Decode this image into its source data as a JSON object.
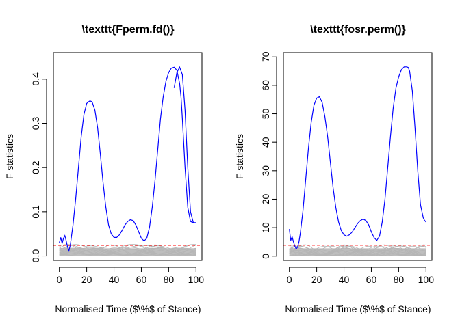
{
  "chart_data": [
    {
      "type": "line",
      "title": "\\texttt{Fperm.fd()}",
      "xlabel": "Normalised Time ($\\%$ of Stance)",
      "ylabel": "F statistics",
      "xlim": [
        0,
        100
      ],
      "ylim": [
        -0.01,
        0.46
      ],
      "xticks": [
        0,
        20,
        40,
        60,
        80,
        100
      ],
      "yticks": [
        0.0,
        0.1,
        0.2,
        0.3,
        0.4
      ],
      "ytick_labels": [
        "0.0",
        "0.1",
        "0.2",
        "0.3",
        "0.4"
      ],
      "threshold": 0.024,
      "series": [
        {
          "kind": "observed",
          "color": "#0000FF",
          "x": [
            0,
            1,
            2,
            3,
            4,
            5,
            6,
            7,
            8,
            10,
            12,
            14,
            16,
            18,
            20,
            22,
            23,
            24,
            26,
            28,
            30,
            32,
            34,
            36,
            38,
            40,
            42,
            44,
            46,
            48,
            50,
            52,
            54,
            56,
            58,
            60,
            62,
            64,
            66,
            68,
            70,
            72,
            74,
            76,
            78,
            80,
            82,
            84,
            86,
            88,
            89,
            90,
            92,
            94,
            96,
            98,
            99,
            100
          ],
          "values": [
            0.03,
            0.042,
            0.028,
            0.04,
            0.046,
            0.034,
            0.02,
            0.012,
            0.025,
            0.07,
            0.13,
            0.2,
            0.27,
            0.32,
            0.345,
            0.35,
            0.35,
            0.348,
            0.33,
            0.29,
            0.23,
            0.165,
            0.11,
            0.07,
            0.05,
            0.042,
            0.042,
            0.048,
            0.058,
            0.07,
            0.078,
            0.082,
            0.08,
            0.07,
            0.055,
            0.04,
            0.034,
            0.04,
            0.065,
            0.11,
            0.17,
            0.24,
            0.31,
            0.36,
            0.395,
            0.415,
            0.425,
            0.427,
            0.42,
            0.39,
            0.36,
            0.31,
            0.2,
            0.11,
            0.078,
            0.075,
            0.075,
            0.075
          ]
        },
        {
          "kind": "observed-overlay",
          "color": "#0000FF",
          "x": [
            84,
            86,
            88,
            90,
            92,
            94,
            96,
            98,
            99,
            100
          ],
          "values": [
            0.38,
            0.415,
            0.427,
            0.41,
            0.33,
            0.2,
            0.1,
            0.076,
            0.075,
            0.075
          ]
        }
      ]
    },
    {
      "type": "line",
      "title": "\\texttt{fosr.perm()}",
      "xlabel": "Normalised Time ($\\%$ of Stance)",
      "ylabel": "F statistics",
      "xlim": [
        0,
        100
      ],
      "ylim": [
        -1.5,
        71.5
      ],
      "xticks": [
        0,
        20,
        40,
        60,
        80,
        100
      ],
      "yticks": [
        0,
        10,
        20,
        30,
        40,
        50,
        60,
        70
      ],
      "ytick_labels": [
        "0",
        "10",
        "20",
        "30",
        "40",
        "50",
        "60",
        "70"
      ],
      "threshold": 3.8,
      "series": [
        {
          "kind": "observed",
          "color": "#0000FF",
          "x": [
            0,
            1,
            2,
            3,
            4,
            5,
            6,
            7,
            8,
            10,
            12,
            14,
            16,
            18,
            20,
            22,
            24,
            26,
            28,
            30,
            32,
            34,
            36,
            38,
            40,
            42,
            44,
            46,
            48,
            50,
            52,
            54,
            56,
            58,
            60,
            62,
            64,
            66,
            68,
            70,
            72,
            74,
            76,
            78,
            80,
            82,
            84,
            86,
            87,
            88,
            90,
            92,
            94,
            96,
            98,
            99,
            100
          ],
          "values": [
            9.5,
            5.5,
            6.8,
            5.0,
            3.5,
            2.5,
            3.2,
            5.0,
            8.0,
            16.0,
            27.0,
            38.0,
            47.0,
            53.0,
            55.5,
            56.0,
            54.0,
            49.0,
            42.0,
            33.0,
            24.0,
            17.0,
            12.0,
            9.0,
            7.5,
            7.0,
            7.5,
            8.5,
            10.0,
            11.5,
            12.5,
            13.0,
            12.5,
            11.0,
            8.5,
            6.5,
            5.5,
            7.0,
            12.0,
            20.0,
            31.0,
            42.0,
            52.0,
            59.0,
            63.0,
            65.5,
            66.5,
            66.5,
            66.3,
            65.0,
            58.0,
            45.0,
            30.0,
            18.0,
            13.5,
            12.5,
            12.0
          ]
        }
      ]
    }
  ]
}
